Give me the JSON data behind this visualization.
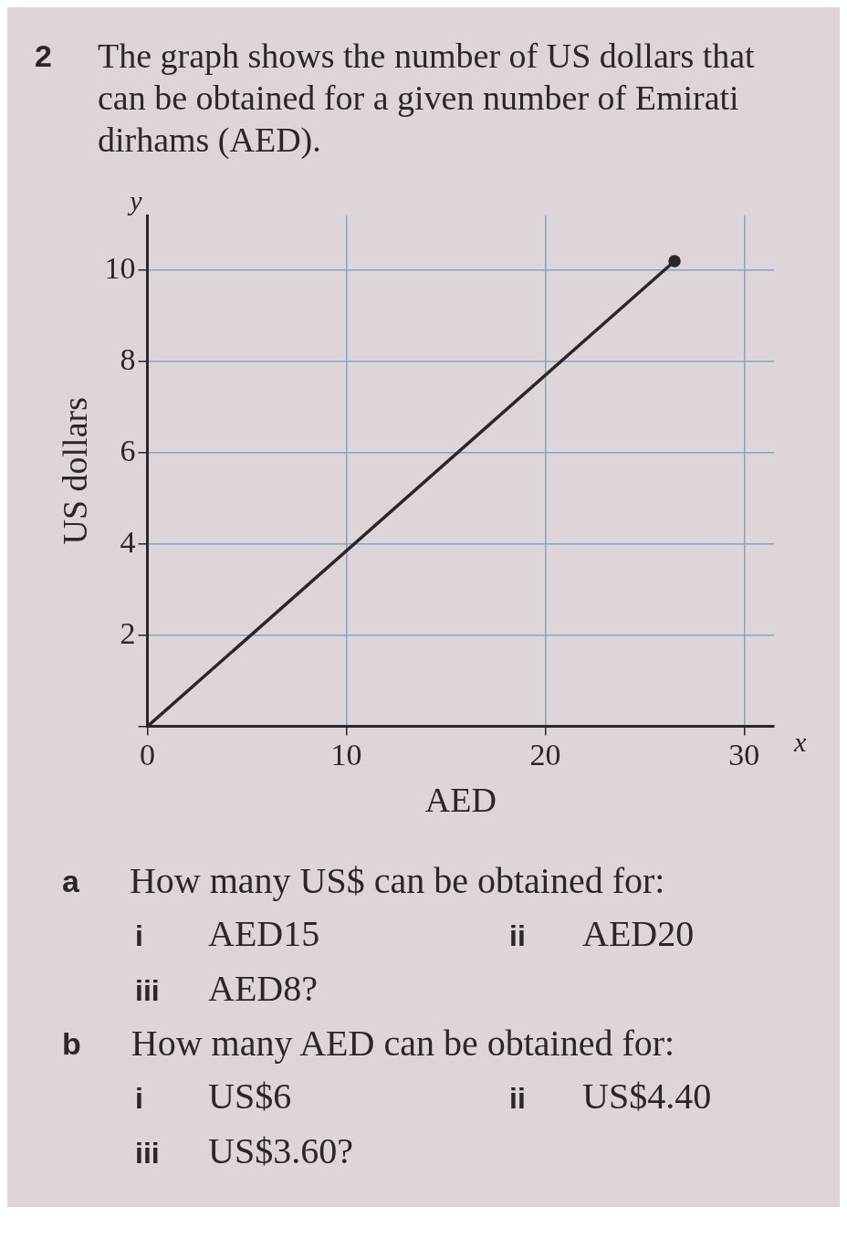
{
  "chart_data": {
    "type": "line",
    "title": "The graph shows the number of US dollars that can be obtained for a given number of Emirati dirhams (AED).",
    "xlabel": "AED",
    "ylabel": "US dollars",
    "x": [
      0,
      26.5
    ],
    "series": [
      {
        "color": "#2b2628",
        "values": [
          0,
          10.2
        ]
      }
    ],
    "xlim": [
      0,
      31.5
    ],
    "ylim": [
      0,
      11.2
    ],
    "xticks": [
      0,
      10,
      20,
      30
    ],
    "yticks": [
      {
        "value": 0,
        "label": null
      },
      2,
      4,
      6,
      8,
      10
    ],
    "grid": true,
    "legend": false,
    "marker": "circle",
    "line_style": "solid",
    "annotations": [
      "2",
      "x",
      "y",
      "a",
      "How many US$ can be obtained for:",
      "i",
      "AED15",
      "ii",
      "AED20",
      "iii",
      "AED8?",
      "b",
      "How many AED can be obtained for:",
      "i",
      "US$6",
      "ii",
      "US$4.40",
      "iii",
      "US$3.60?"
    ]
  }
}
